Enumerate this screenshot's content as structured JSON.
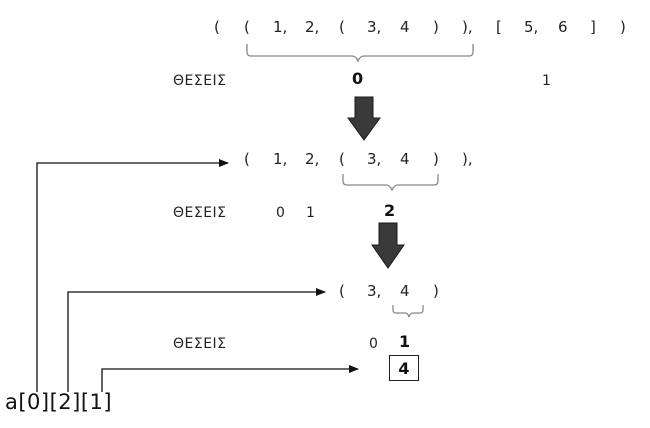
{
  "row1": {
    "tokens": [
      "(",
      "(",
      "1,",
      "2,",
      "(",
      "3,",
      "4",
      ")",
      "),",
      "[",
      "5,",
      "6",
      "]",
      ")"
    ],
    "label": "ΘΕΣΕΙΣ",
    "indices": [
      "0",
      "1"
    ]
  },
  "row2": {
    "tokens": [
      "(",
      "1,",
      "2,",
      "(",
      "3,",
      "4",
      ")",
      "),"
    ],
    "label": "ΘΕΣΕΙΣ",
    "indices": [
      "0",
      "1",
      "2"
    ]
  },
  "row3": {
    "tokens": [
      "(",
      "3,",
      "4",
      ")"
    ],
    "label": "ΘΕΣΕΙΣ",
    "indices": [
      "0",
      "1"
    ]
  },
  "result": "4",
  "expression": "a[0][2][1]",
  "colors": {
    "ink": "#222222",
    "arrow": "#3a3a3a",
    "bracket": "#777777"
  }
}
